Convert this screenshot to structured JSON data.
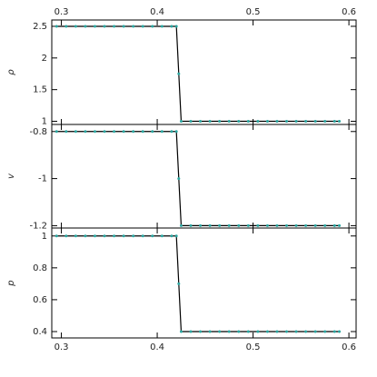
{
  "chart_data": [
    {
      "type": "line",
      "ylabel": "ρ",
      "xtick_labels": "top",
      "x": [
        0.295,
        0.305,
        0.315,
        0.325,
        0.335,
        0.345,
        0.355,
        0.365,
        0.375,
        0.385,
        0.395,
        0.405,
        0.415,
        0.42,
        0.4225,
        0.425,
        0.435,
        0.445,
        0.455,
        0.465,
        0.475,
        0.485,
        0.495,
        0.505,
        0.515,
        0.525,
        0.535,
        0.545,
        0.555,
        0.565,
        0.575,
        0.585,
        0.59
      ],
      "series": [
        {
          "color": "#2aa6a0",
          "line_color": "#000000",
          "values": [
            2.5,
            2.5,
            2.5,
            2.5,
            2.5,
            2.5,
            2.5,
            2.5,
            2.5,
            2.5,
            2.5,
            2.5,
            2.5,
            2.5,
            1.75,
            1,
            1,
            1,
            1,
            1,
            1,
            1,
            1,
            1,
            1,
            1,
            1,
            1,
            1,
            1,
            1,
            1,
            1
          ]
        }
      ],
      "xlim": [
        0.29,
        0.6075
      ],
      "xticks": [
        0.3,
        0.4,
        0.5,
        0.6
      ],
      "ylim": [
        0.95,
        2.6
      ],
      "yticks": [
        1,
        1.5,
        2,
        2.5
      ]
    },
    {
      "type": "line",
      "ylabel": "v",
      "xtick_labels": "none",
      "x": [
        0.295,
        0.305,
        0.315,
        0.325,
        0.335,
        0.345,
        0.355,
        0.365,
        0.375,
        0.385,
        0.395,
        0.405,
        0.415,
        0.42,
        0.4225,
        0.425,
        0.435,
        0.445,
        0.455,
        0.465,
        0.475,
        0.485,
        0.495,
        0.505,
        0.515,
        0.525,
        0.535,
        0.545,
        0.555,
        0.565,
        0.575,
        0.585,
        0.59
      ],
      "series": [
        {
          "color": "#2aa6a0",
          "line_color": "#000000",
          "values": [
            -0.8,
            -0.8,
            -0.8,
            -0.8,
            -0.8,
            -0.8,
            -0.8,
            -0.8,
            -0.8,
            -0.8,
            -0.8,
            -0.8,
            -0.8,
            -0.8,
            -1.0,
            -1.2,
            -1.2,
            -1.2,
            -1.2,
            -1.2,
            -1.2,
            -1.2,
            -1.2,
            -1.2,
            -1.2,
            -1.2,
            -1.2,
            -1.2,
            -1.2,
            -1.2,
            -1.2,
            -1.2,
            -1.2
          ]
        }
      ],
      "xlim": [
        0.29,
        0.6075
      ],
      "xticks": [
        0.3,
        0.4,
        0.5,
        0.6
      ],
      "ylim": [
        -1.21,
        -0.77
      ],
      "yticks": [
        -1.2,
        -1,
        -0.8
      ]
    },
    {
      "type": "line",
      "ylabel": "p",
      "xtick_labels": "bottom",
      "x": [
        0.295,
        0.305,
        0.315,
        0.325,
        0.335,
        0.345,
        0.355,
        0.365,
        0.375,
        0.385,
        0.395,
        0.405,
        0.415,
        0.42,
        0.4225,
        0.425,
        0.435,
        0.445,
        0.455,
        0.465,
        0.475,
        0.485,
        0.495,
        0.505,
        0.515,
        0.525,
        0.535,
        0.545,
        0.555,
        0.565,
        0.575,
        0.585,
        0.59
      ],
      "series": [
        {
          "color": "#2aa6a0",
          "line_color": "#000000",
          "values": [
            1,
            1,
            1,
            1,
            1,
            1,
            1,
            1,
            1,
            1,
            1,
            1,
            1,
            1,
            0.7,
            0.4,
            0.4,
            0.4,
            0.4,
            0.4,
            0.4,
            0.4,
            0.4,
            0.4,
            0.4,
            0.4,
            0.4,
            0.4,
            0.4,
            0.4,
            0.4,
            0.4,
            0.4
          ]
        }
      ],
      "xlim": [
        0.29,
        0.6075
      ],
      "xticks": [
        0.3,
        0.4,
        0.5,
        0.6
      ],
      "ylim": [
        0.36,
        1.05
      ],
      "yticks": [
        0.4,
        0.6,
        0.8,
        1
      ]
    }
  ]
}
